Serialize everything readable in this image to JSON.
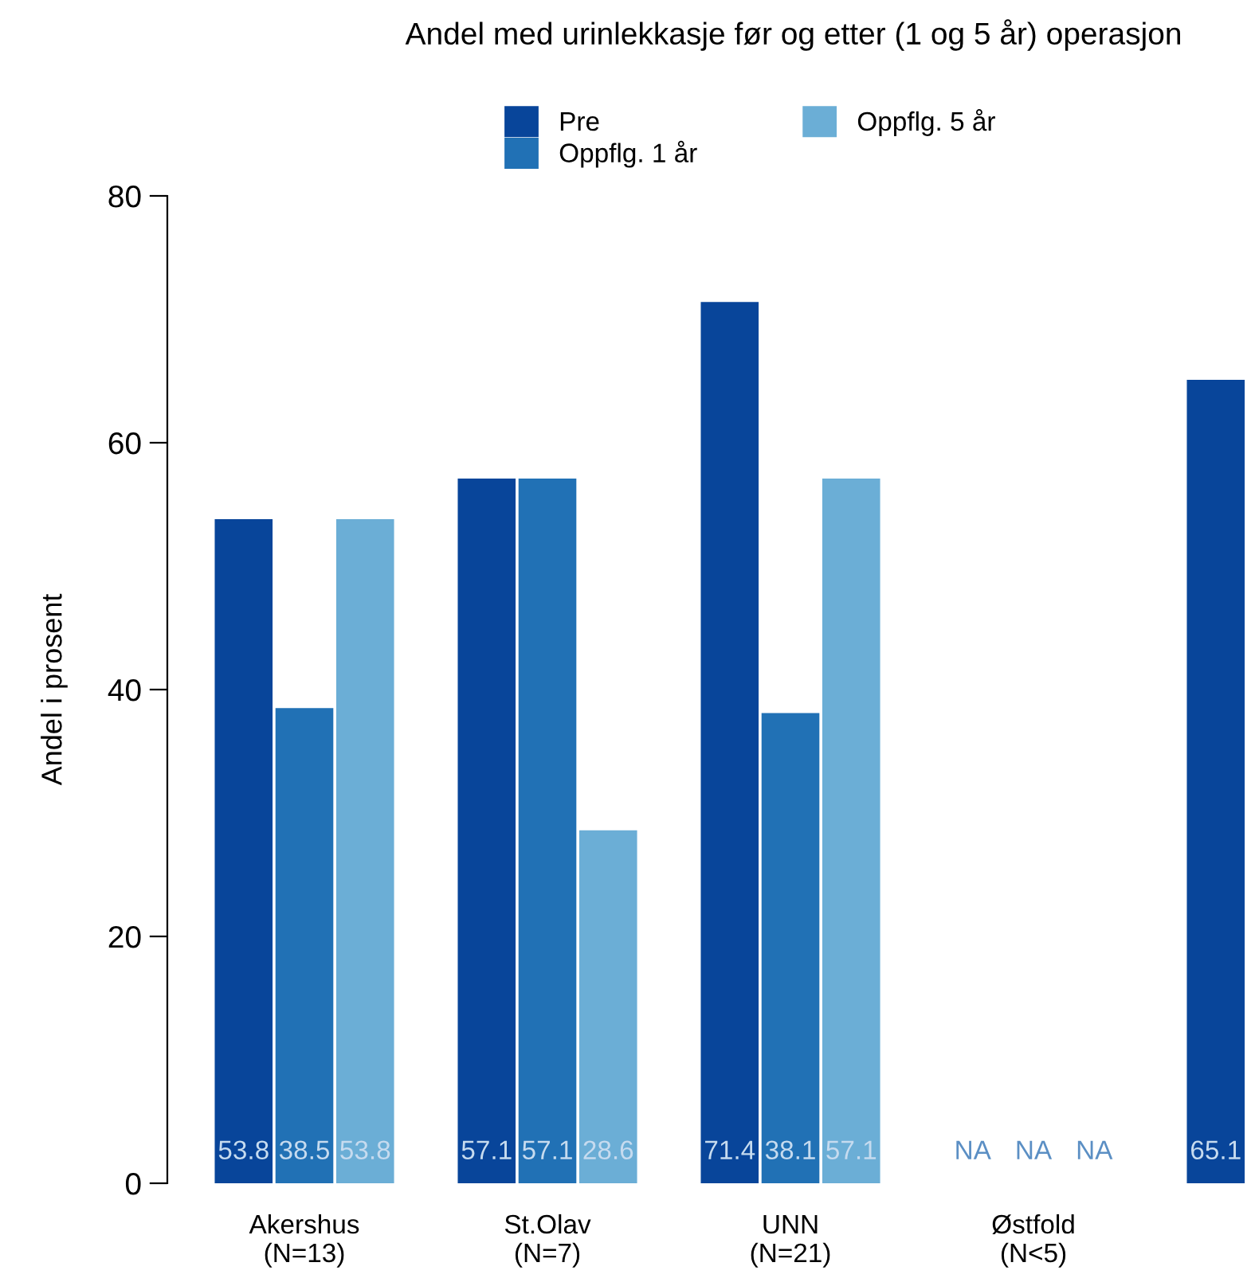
{
  "chart_data": {
    "type": "bar",
    "title": "Andel med urinlekkasje før og etter (1 og 5 år) operasjon",
    "ylabel": "Andel i prosent",
    "categories": [
      "Akershus\n(N=13)",
      "St.Olav\n(N=7)",
      "UNN\n(N=21)",
      "Østfold\n(N<5)",
      null
    ],
    "series": [
      {
        "name": "Pre",
        "color": "#08459a",
        "values": [
          53.8,
          57.1,
          71.4,
          null,
          65.1
        ],
        "value_labels": [
          "53.8",
          "57.1",
          "71.4",
          "NA",
          "65.1"
        ]
      },
      {
        "name": "Oppflg. 1 år",
        "color": "#2171b5",
        "values": [
          38.5,
          57.1,
          38.1,
          null,
          null
        ],
        "value_labels": [
          "38.5",
          "57.1",
          "38.1",
          "NA",
          null
        ]
      },
      {
        "name": "Oppflg. 5 år",
        "color": "#6baed6",
        "values": [
          53.8,
          28.6,
          57.1,
          null,
          null
        ],
        "value_labels": [
          "53.8",
          "28.6",
          "57.1",
          "NA",
          null
        ]
      }
    ],
    "ylim": [
      0,
      80
    ],
    "yticks": [
      0,
      20,
      40,
      60,
      80
    ],
    "grid": false,
    "legend": "top"
  }
}
